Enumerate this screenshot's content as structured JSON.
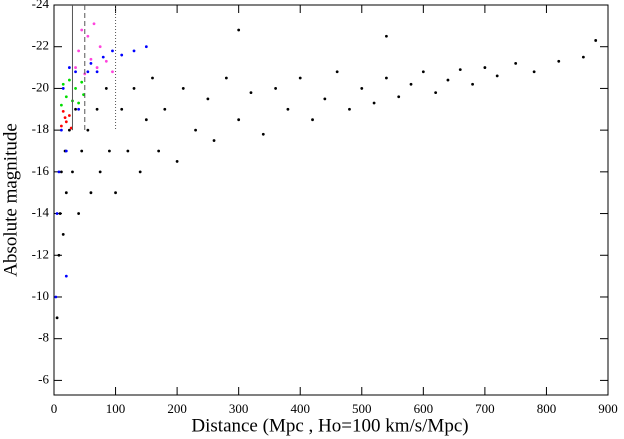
{
  "chart_data": {
    "type": "scatter",
    "x_label": "Distance (Mpc , Ho=100 km/s/Mpc)",
    "y_label": "Absolute magnitude",
    "xlim": [
      0,
      900
    ],
    "xticks": [
      0,
      100,
      200,
      300,
      400,
      500,
      600,
      700,
      800,
      900
    ],
    "ylim": [
      -5.3,
      -24
    ],
    "yticks": [
      -6,
      -8,
      -10,
      -12,
      -14,
      -16,
      -18,
      -20,
      -22,
      -24
    ],
    "reference_lines": [
      {
        "x": 30,
        "style": "solid"
      },
      {
        "x": 50,
        "style": "dashed"
      },
      {
        "x": 100,
        "style": "dotted"
      }
    ],
    "series": [
      {
        "color": "#000000",
        "x": [
          5,
          8,
          10,
          12,
          15,
          18,
          20,
          25,
          30,
          35,
          40,
          45,
          55,
          60,
          70,
          75,
          85,
          90,
          100,
          110,
          120,
          130,
          140,
          150,
          160,
          170,
          180,
          200,
          210,
          230,
          250,
          260,
          280,
          300,
          320,
          340,
          360,
          380,
          400,
          420,
          440,
          460,
          480,
          500,
          520,
          540,
          560,
          580,
          600,
          620,
          640,
          660,
          680,
          700,
          720,
          750,
          780,
          820,
          860,
          880,
          540,
          300
        ],
        "y": [
          -9,
          -12,
          -14,
          -16,
          -13,
          -17,
          -15,
          -18,
          -16,
          -19,
          -14,
          -17,
          -18,
          -15,
          -19,
          -16,
          -20,
          -17,
          -15,
          -19,
          -17,
          -20,
          -16,
          -18.5,
          -20.5,
          -17,
          -19,
          -16.5,
          -20,
          -18,
          -19.5,
          -17.5,
          -20.5,
          -18.5,
          -19.8,
          -17.8,
          -20,
          -19,
          -20.5,
          -18.5,
          -19.5,
          -20.8,
          -19,
          -20,
          -19.3,
          -20.5,
          -19.6,
          -20.2,
          -20.8,
          -19.8,
          -20.4,
          -20.9,
          -20.2,
          -21,
          -20.6,
          -21.2,
          -20.8,
          -21.3,
          -21.5,
          -22.3,
          -22.5,
          -22.8
        ]
      },
      {
        "color": "#0000ff",
        "x": [
          5,
          8,
          12,
          15,
          20,
          25,
          35,
          40,
          55,
          60,
          70,
          80,
          95,
          110,
          130,
          150,
          20,
          3
        ],
        "y": [
          -14,
          -16,
          -18,
          -20,
          -17,
          -21,
          -20.8,
          -19,
          -20.8,
          -21.2,
          -20.8,
          -21.5,
          -21.8,
          -21.6,
          -21.8,
          -22,
          -11,
          -10
        ]
      },
      {
        "color": "#00dd00",
        "x": [
          12,
          15,
          20,
          25,
          30,
          35,
          40,
          45,
          48
        ],
        "y": [
          -19.2,
          -20.2,
          -19.6,
          -20.4,
          -19.4,
          -20,
          -19.3,
          -20.3,
          -19.7
        ]
      },
      {
        "color": "#ff0000",
        "x": [
          12,
          15,
          20,
          25,
          28,
          18
        ],
        "y": [
          -18.2,
          -18.9,
          -18.4,
          -18.7,
          -18.1,
          -18.6
        ]
      },
      {
        "color": "#ff44dd",
        "x": [
          35,
          40,
          50,
          55,
          60,
          70,
          75,
          85,
          95,
          45,
          65
        ],
        "y": [
          -21,
          -21.8,
          -20.7,
          -22.5,
          -21.4,
          -21,
          -22,
          -21.3,
          -20.8,
          -22.8,
          -23.1
        ]
      }
    ]
  }
}
